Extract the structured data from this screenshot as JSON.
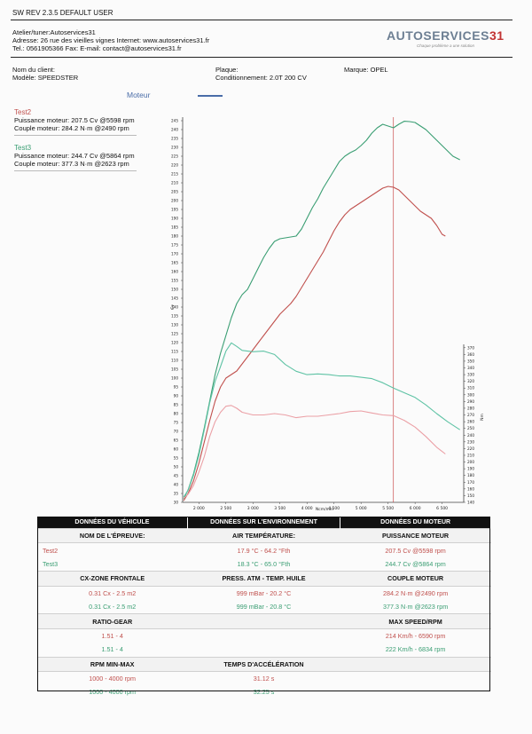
{
  "header": {
    "title": "SW REV 2.3.5   DEFAULT USER",
    "atelier": "Atelier/tuner:Autoservices31",
    "adresse": "Adresse: 26 rue des vieilles vignes Internet: www.autoservices31.fr",
    "tel": "Tel.: 0561905366 Fax:  E-mail: contact@autoservices31.fr",
    "logo_main": "AUTOSERVICES",
    "logo_num": "31",
    "logo_tagline": "Chaque problème a une solution"
  },
  "client": {
    "nom_label": "Nom du client:",
    "modele": "Modèle: SPEEDSTER",
    "plaque_label": "Plaque:",
    "conditionnement": "Conditionnement: 2.0T 200 CV",
    "marque": "Marque: OPEL"
  },
  "tests": [
    {
      "name": "Test2",
      "puissance": "Puissance moteur: 207.5 Cv @5598 rpm",
      "couple": "Couple moteur: 284.2 N·m @2490 rpm",
      "color": "#c0504d"
    },
    {
      "name": "Test3",
      "puissance": "Puissance moteur: 244.7 Cv @5864 rpm",
      "couple": "Couple moteur: 377.3 N·m @2623 rpm",
      "color": "#3a9e73"
    }
  ],
  "legend": {
    "label": "Moteur",
    "color": "#4a6da8"
  },
  "chart_data": {
    "type": "line",
    "xlabel": "Ncm/min",
    "ylabel_left": "Cv",
    "ylabel_right": "Nm",
    "xlim": [
      1700,
      6900
    ],
    "ylim_left": [
      30,
      247
    ],
    "ylim_right": [
      140,
      375
    ],
    "x_ticks": [
      2000,
      2500,
      3000,
      3500,
      4000,
      4500,
      5000,
      5500,
      6000,
      6500
    ],
    "x_tick_labels": [
      "2 000",
      "2 500",
      "3 000",
      "3 500",
      "4 000",
      "4 500",
      "5 000",
      "5 500",
      "6 000",
      "6 500"
    ],
    "left_ticks_start": 30,
    "left_ticks_end": 245,
    "left_ticks_step": 5,
    "right_ticks_start": 140,
    "right_ticks_end": 370,
    "right_ticks_step": 10,
    "marker_rpm": 5600,
    "series": [
      {
        "name": "Test2",
        "kind": "power",
        "axis": "left",
        "color": "#c0504d",
        "x": [
          1720,
          1800,
          1900,
          2000,
          2100,
          2200,
          2300,
          2400,
          2500,
          2600,
          2700,
          2800,
          2900,
          3000,
          3100,
          3200,
          3300,
          3400,
          3500,
          3600,
          3700,
          3800,
          3900,
          4000,
          4100,
          4200,
          4300,
          4400,
          4500,
          4600,
          4700,
          4800,
          4900,
          5000,
          5100,
          5200,
          5300,
          5400,
          5500,
          5600,
          5700,
          5800,
          5900,
          6000,
          6100,
          6200,
          6300,
          6400,
          6500,
          6560
        ],
        "y": [
          31,
          35,
          42,
          52,
          64,
          76,
          87,
          95,
          100,
          102,
          104,
          108,
          112,
          116,
          120,
          124,
          128,
          132,
          136,
          139,
          142,
          146,
          151,
          156,
          161,
          166,
          171,
          177,
          183,
          188,
          192,
          195,
          197,
          199,
          201,
          203,
          205,
          207,
          208,
          207.5,
          206,
          203,
          200,
          197,
          194,
          192,
          190,
          186,
          181,
          180
        ]
      },
      {
        "name": "Test3",
        "kind": "power",
        "axis": "left",
        "color": "#3a9e73",
        "x": [
          1720,
          1800,
          1900,
          2000,
          2100,
          2200,
          2300,
          2400,
          2500,
          2600,
          2700,
          2800,
          2900,
          3000,
          3100,
          3200,
          3300,
          3400,
          3500,
          3600,
          3700,
          3800,
          3900,
          4000,
          4100,
          4200,
          4300,
          4400,
          4500,
          4600,
          4700,
          4800,
          4900,
          5000,
          5100,
          5200,
          5300,
          5400,
          5500,
          5600,
          5700,
          5800,
          5900,
          6000,
          6100,
          6200,
          6300,
          6400,
          6500,
          6600,
          6700,
          6830
        ],
        "y": [
          32,
          37,
          46,
          58,
          72,
          87,
          102,
          114,
          124,
          134,
          142,
          147,
          150,
          156,
          162,
          168,
          173,
          177,
          178.5,
          179,
          179.5,
          180,
          184,
          190,
          196,
          201,
          207,
          212,
          217,
          222,
          225,
          227,
          228.5,
          231,
          234,
          238,
          241,
          243,
          242,
          241,
          243,
          244.7,
          244.5,
          244,
          242,
          240,
          237,
          234,
          231,
          228,
          225,
          223
        ]
      },
      {
        "name": "Test2",
        "kind": "torque",
        "axis": "right",
        "color": "#eba0a6",
        "x": [
          1720,
          1800,
          1900,
          2000,
          2100,
          2200,
          2300,
          2400,
          2500,
          2600,
          2700,
          2800,
          3000,
          3200,
          3400,
          3600,
          3800,
          4000,
          4200,
          4400,
          4600,
          4800,
          5000,
          5200,
          5400,
          5600,
          5800,
          6000,
          6200,
          6400,
          6560
        ],
        "y": [
          146,
          152,
          165,
          185,
          208,
          238,
          260,
          274,
          283,
          284.2,
          280,
          274,
          270,
          270,
          272,
          270,
          266,
          268,
          268,
          270,
          272,
          275,
          276,
          273,
          270,
          269,
          262,
          252,
          238,
          222,
          212
        ]
      },
      {
        "name": "Test3",
        "kind": "torque",
        "axis": "right",
        "color": "#5fc3a5",
        "x": [
          1720,
          1800,
          1900,
          2000,
          2100,
          2200,
          2300,
          2400,
          2500,
          2600,
          2700,
          2800,
          3000,
          3200,
          3400,
          3600,
          3800,
          4000,
          4200,
          4400,
          4600,
          4800,
          5000,
          5200,
          5400,
          5600,
          5800,
          6000,
          6200,
          6400,
          6600,
          6830
        ],
        "y": [
          148,
          158,
          180,
          210,
          248,
          288,
          320,
          342,
          365,
          377.3,
          372,
          366,
          364,
          365,
          360,
          345,
          335,
          330,
          331,
          330,
          328,
          328,
          326,
          324,
          318,
          310,
          303,
          296,
          285,
          272,
          260,
          248
        ]
      }
    ]
  },
  "results": {
    "headers": [
      "DONNÉES DU VÉHICULE",
      "DONNÉES SUR L'ENVIRONNEMENT",
      "DONNÉES DU MOTEUR"
    ],
    "sections": [
      {
        "cols": [
          "NOM DE L'ÉPREUVE:",
          "AIR TEMPÉRATURE:",
          "PUISSANCE MOTEUR"
        ],
        "rows": [
          [
            "Test2",
            "17.9 °C - 64.2 °Fth",
            "207.5  Cv  @5598 rpm"
          ],
          [
            "Test3",
            "18.3 °C - 65.0 °Fth",
            "244.7  Cv  @5864 rpm"
          ]
        ]
      },
      {
        "cols": [
          "CX-ZONE FRONTALE",
          "PRESS. ATM - TEMP. HUILE",
          "COUPLE MOTEUR"
        ],
        "rows": [
          [
            "0.31 Cx - 2.5 m2",
            "999 mBar - 20.2 °C",
            "284.2  N·m  @2490 rpm"
          ],
          [
            "0.31 Cx - 2.5 m2",
            "999 mBar - 20.8 °C",
            "377.3  N·m  @2623 rpm"
          ]
        ]
      },
      {
        "cols": [
          "RATIO-GEAR",
          "",
          "MAX SPEED/RPM"
        ],
        "rows": [
          [
            "1.51 - 4",
            "",
            "214 Km/h - 6590 rpm"
          ],
          [
            "1.51 - 4",
            "",
            "222 Km/h - 6834 rpm"
          ]
        ]
      },
      {
        "cols": [
          "RPM MIN-MAX",
          "TEMPS D'ACCÉLÉRATION",
          ""
        ],
        "rows": [
          [
            "1000 - 4000 rpm",
            "31.12 s",
            ""
          ],
          [
            "1000 - 4000 rpm",
            "32.25 s",
            ""
          ]
        ]
      }
    ],
    "row_colors": [
      "#c0504d",
      "#3a9e73"
    ]
  }
}
